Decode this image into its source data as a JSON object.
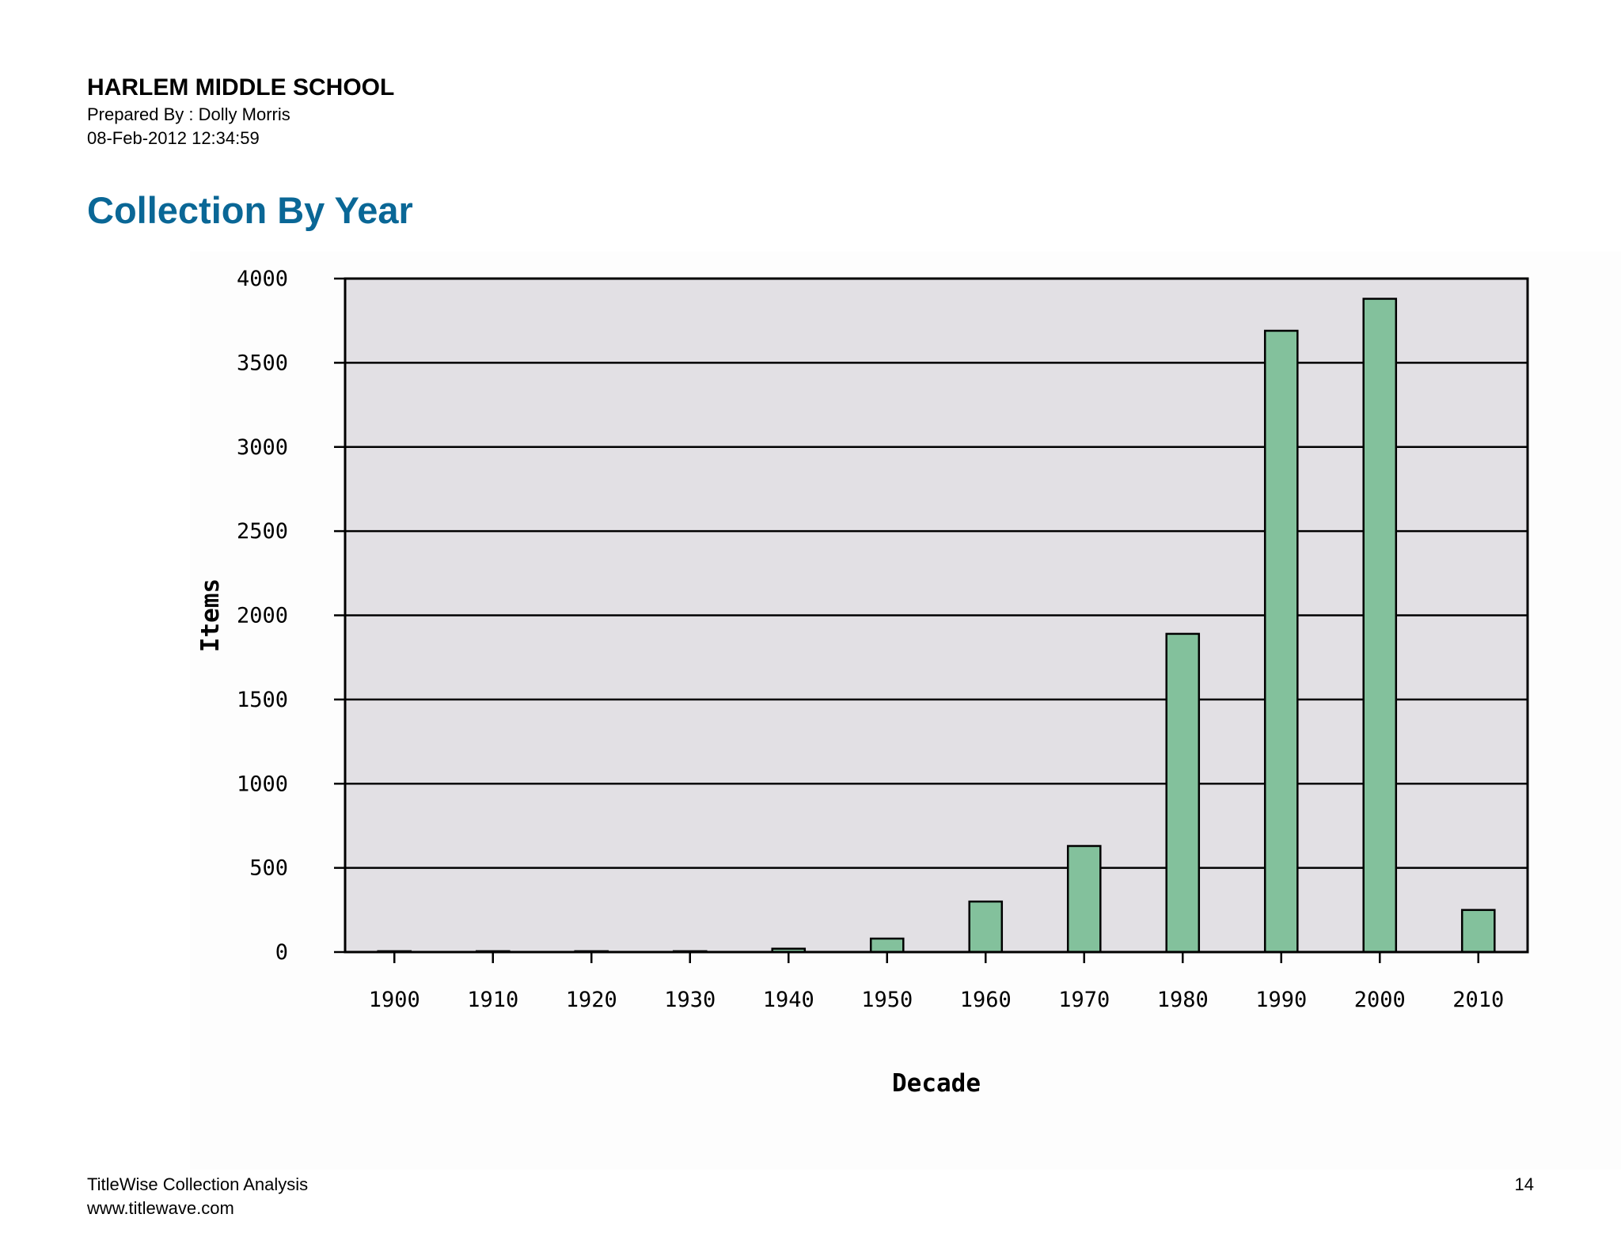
{
  "header": {
    "school": "HARLEM MIDDLE SCHOOL",
    "prepared_by": "Prepared By : Dolly Morris",
    "date": "08-Feb-2012 12:34:59"
  },
  "report": {
    "title": "Collection By Year"
  },
  "footer": {
    "product": "TitleWise Collection Analysis",
    "url": "www.titlewave.com",
    "page_number": "14"
  },
  "colors": {
    "title": "#0a6796",
    "plot_background": "#e2e0e4",
    "bar_fill": "#83c19c",
    "bar_stroke": "#000000"
  },
  "chart_data": {
    "type": "bar",
    "title": "",
    "xlabel": "Decade",
    "ylabel": "Items",
    "categories": [
      "1900",
      "1910",
      "1920",
      "1930",
      "1940",
      "1950",
      "1960",
      "1970",
      "1980",
      "1990",
      "2000",
      "2010"
    ],
    "values": [
      5,
      5,
      5,
      5,
      20,
      80,
      300,
      630,
      1890,
      3690,
      3880,
      250
    ],
    "ylim": [
      0,
      4000
    ],
    "yticks": [
      0,
      500,
      1000,
      1500,
      2000,
      2500,
      3000,
      3500,
      4000
    ],
    "ytick_labels": [
      "0",
      "500",
      "1000",
      "1500",
      "2000",
      "2500",
      "3000",
      "3500",
      "4000"
    ],
    "grid": true,
    "legend": "none"
  }
}
